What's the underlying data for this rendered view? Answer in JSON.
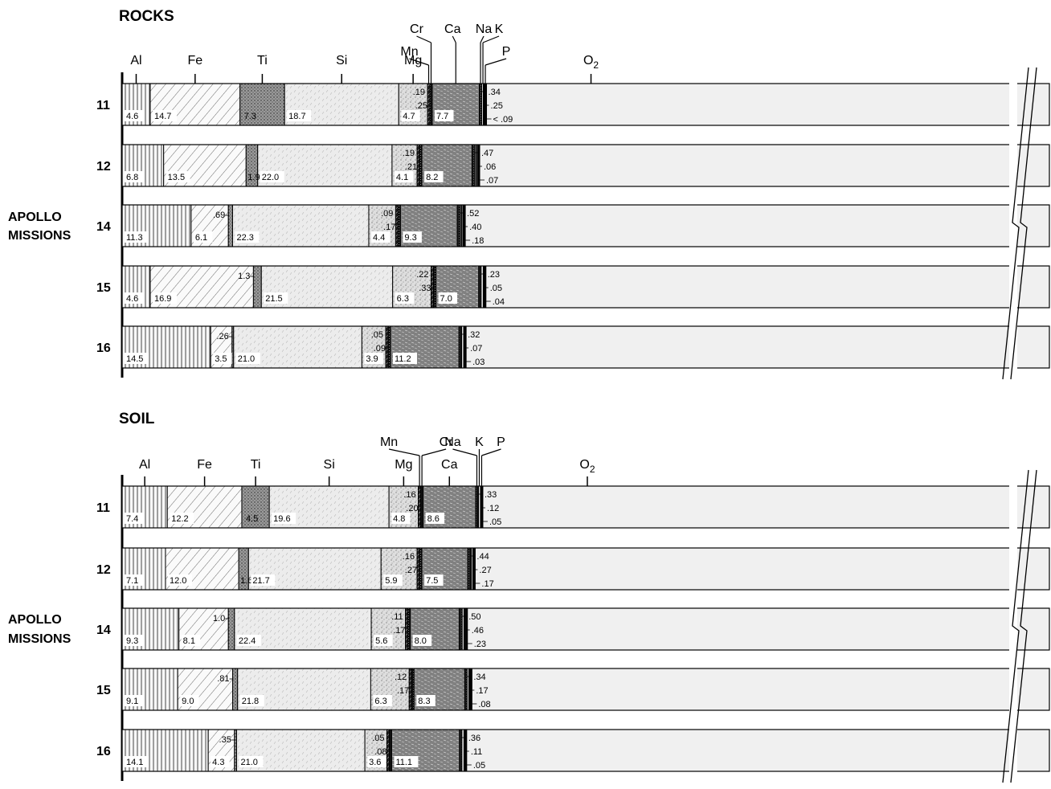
{
  "side_label": [
    "APOLLO",
    "MISSIONS"
  ],
  "chart_data": [
    {
      "type": "bar",
      "subtype": "stacked-horizontal",
      "title": "ROCKS",
      "ylabel": "APOLLO MISSIONS",
      "categories": [
        "11",
        "12",
        "14",
        "15",
        "16"
      ],
      "elements": [
        "Al",
        "Fe",
        "Ti",
        "Si",
        "Mg",
        "Mn",
        "Cr",
        "Ca",
        "Na",
        "K",
        "P",
        "O2"
      ],
      "series": [
        {
          "name": "Al",
          "values": [
            4.6,
            6.8,
            11.3,
            4.6,
            14.5
          ],
          "labels": [
            "4.6",
            "6.8",
            "11.3",
            "4.6",
            "14.5"
          ]
        },
        {
          "name": "Fe",
          "values": [
            14.7,
            13.5,
            6.1,
            16.9,
            3.5
          ],
          "labels": [
            "14.7",
            "13.5",
            "6.1",
            "16.9",
            "3.5"
          ]
        },
        {
          "name": "Ti",
          "values": [
            7.3,
            1.9,
            0.69,
            1.3,
            0.26
          ],
          "labels": [
            "7.3",
            "1.9",
            ".69",
            "1.3",
            ".26"
          ]
        },
        {
          "name": "Si",
          "values": [
            18.7,
            22.0,
            22.3,
            21.5,
            21.0
          ],
          "labels": [
            "18.7",
            "22.0",
            "22.3",
            "21.5",
            "21.0"
          ]
        },
        {
          "name": "Mg",
          "values": [
            4.7,
            4.1,
            4.4,
            6.3,
            3.9
          ],
          "labels": [
            "4.7",
            "4.1",
            "4.4",
            "6.3",
            "3.9"
          ]
        },
        {
          "name": "Mn",
          "values": [
            0.19,
            0.19,
            0.09,
            0.22,
            0.05
          ],
          "labels": [
            ".19",
            ".19",
            ".09",
            ".22",
            ".05"
          ]
        },
        {
          "name": "Cr",
          "values": [
            0.25,
            0.21,
            0.17,
            0.33,
            0.09
          ],
          "labels": [
            ".25",
            ".21",
            ".17",
            ".33",
            ".09"
          ]
        },
        {
          "name": "Ca",
          "values": [
            7.7,
            8.2,
            9.3,
            7.0,
            11.2
          ],
          "labels": [
            "7.7",
            "8.2",
            "9.3",
            "7.0",
            "11.2"
          ]
        },
        {
          "name": "Na",
          "values": [
            0.34,
            0.47,
            0.52,
            0.23,
            0.32
          ],
          "labels": [
            ".34",
            ".47",
            ".52",
            ".23",
            ".32"
          ]
        },
        {
          "name": "K",
          "values": [
            0.25,
            0.06,
            0.4,
            0.05,
            0.07
          ],
          "labels": [
            ".25",
            ".06",
            ".40",
            ".05",
            ".07"
          ]
        },
        {
          "name": "P",
          "values": [
            0.09,
            0.07,
            0.18,
            0.04,
            0.03
          ],
          "labels": [
            "< .09",
            ".07",
            ".18",
            ".04",
            ".03"
          ]
        },
        {
          "name": "O2",
          "values": [
            null,
            null,
            null,
            null,
            null
          ],
          "labels": []
        }
      ]
    },
    {
      "type": "bar",
      "subtype": "stacked-horizontal",
      "title": "SOIL",
      "ylabel": "APOLLO MISSIONS",
      "categories": [
        "11",
        "12",
        "14",
        "15",
        "16"
      ],
      "elements": [
        "Al",
        "Fe",
        "Ti",
        "Si",
        "Mg",
        "Mn",
        "Cr",
        "Ca",
        "Na",
        "K",
        "P",
        "O2"
      ],
      "series": [
        {
          "name": "Al",
          "values": [
            7.4,
            7.1,
            9.3,
            9.1,
            14.1
          ],
          "labels": [
            "7.4",
            "7.1",
            "9.3",
            "9.1",
            "14.1"
          ]
        },
        {
          "name": "Fe",
          "values": [
            12.2,
            12.0,
            8.1,
            9.0,
            4.3
          ],
          "labels": [
            "12.2",
            "12.0",
            "8.1",
            "9.0",
            "4.3"
          ]
        },
        {
          "name": "Ti",
          "values": [
            4.5,
            1.6,
            1.0,
            0.81,
            0.35
          ],
          "labels": [
            "4.5",
            "1.6",
            "1.0",
            ".81",
            ".35"
          ]
        },
        {
          "name": "Si",
          "values": [
            19.6,
            21.7,
            22.4,
            21.8,
            21.0
          ],
          "labels": [
            "19.6",
            "21.7",
            "22.4",
            "21.8",
            "21.0"
          ]
        },
        {
          "name": "Mg",
          "values": [
            4.8,
            5.9,
            5.6,
            6.3,
            3.6
          ],
          "labels": [
            "4.8",
            "5.9",
            "5.6",
            "6.3",
            "3.6"
          ]
        },
        {
          "name": "Mn",
          "values": [
            0.16,
            0.16,
            0.11,
            0.12,
            0.05
          ],
          "labels": [
            ".16",
            ".16",
            ".11",
            ".12",
            ".05"
          ]
        },
        {
          "name": "Cr",
          "values": [
            0.2,
            0.27,
            0.17,
            0.17,
            0.08
          ],
          "labels": [
            ".20",
            ".27",
            ".17",
            ".17",
            ".08"
          ]
        },
        {
          "name": "Ca",
          "values": [
            8.6,
            7.5,
            8.0,
            8.3,
            11.1
          ],
          "labels": [
            "8.6",
            "7.5",
            "8.0",
            "8.3",
            "11.1"
          ]
        },
        {
          "name": "Na",
          "values": [
            0.33,
            0.44,
            0.5,
            0.34,
            0.36
          ],
          "labels": [
            ".33",
            ".44",
            ".50",
            ".34",
            ".36"
          ]
        },
        {
          "name": "K",
          "values": [
            0.12,
            0.27,
            0.46,
            0.17,
            0.11
          ],
          "labels": [
            ".12",
            ".27",
            ".46",
            ".17",
            ".11"
          ]
        },
        {
          "name": "P",
          "values": [
            0.05,
            0.17,
            0.23,
            0.08,
            0.05
          ],
          "labels": [
            ".05",
            ".17",
            ".23",
            ".08",
            ".05"
          ]
        },
        {
          "name": "O2",
          "values": [
            null,
            null,
            null,
            null,
            null
          ],
          "labels": []
        }
      ]
    }
  ]
}
